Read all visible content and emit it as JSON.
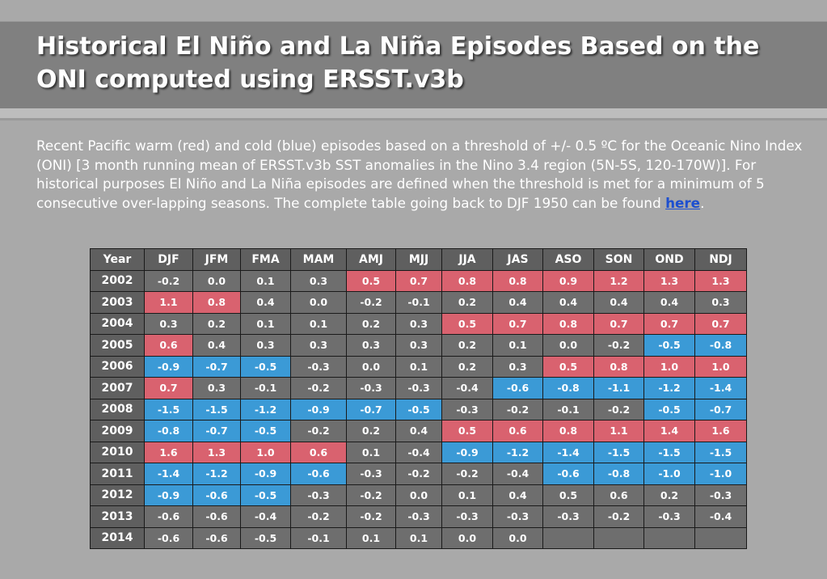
{
  "title_line1": "Historical El Niño and La Niña Episodes Based on the",
  "title_line2": "ONI computed using ERSST.v3b",
  "intro_text": "Recent Pacific warm (red) and cold (blue) episodes based on a threshold of +/- 0.5 ºC for the Oceanic Nino Index (ONI) [3 month running mean of ERSST.v3b SST anomalies in the Nino 3.4 region (5N-5S, 120-170W)]. For historical purposes El Niño and La Niña episodes are defined when the threshold is met for a minimum of 5 consecutive over-lapping seasons. The complete table going back to DJF 1950 can be found ",
  "link_text": "here",
  "intro_end": ".",
  "colors": {
    "warm": "#d9626f",
    "cold": "#3b9ad6",
    "neutral": "#6e6e6e"
  },
  "table": {
    "headers": [
      "Year",
      "DJF",
      "JFM",
      "FMA",
      "MAM",
      "AMJ",
      "MJJ",
      "JJA",
      "JAS",
      "ASO",
      "SON",
      "OND",
      "NDJ"
    ],
    "rows": [
      {
        "year": "2002",
        "values": [
          "-0.2",
          "0.0",
          "0.1",
          "0.3",
          "0.5",
          "0.7",
          "0.8",
          "0.8",
          "0.9",
          "1.2",
          "1.3",
          "1.3"
        ],
        "classes": [
          "n",
          "n",
          "n",
          "n",
          "w",
          "w",
          "w",
          "w",
          "w",
          "w",
          "w",
          "w"
        ]
      },
      {
        "year": "2003",
        "values": [
          "1.1",
          "0.8",
          "0.4",
          "0.0",
          "-0.2",
          "-0.1",
          "0.2",
          "0.4",
          "0.4",
          "0.4",
          "0.4",
          "0.3"
        ],
        "classes": [
          "w",
          "w",
          "n",
          "n",
          "n",
          "n",
          "n",
          "n",
          "n",
          "n",
          "n",
          "n"
        ]
      },
      {
        "year": "2004",
        "values": [
          "0.3",
          "0.2",
          "0.1",
          "0.1",
          "0.2",
          "0.3",
          "0.5",
          "0.7",
          "0.8",
          "0.7",
          "0.7",
          "0.7"
        ],
        "classes": [
          "n",
          "n",
          "n",
          "n",
          "n",
          "n",
          "w",
          "w",
          "w",
          "w",
          "w",
          "w"
        ]
      },
      {
        "year": "2005",
        "values": [
          "0.6",
          "0.4",
          "0.3",
          "0.3",
          "0.3",
          "0.3",
          "0.2",
          "0.1",
          "0.0",
          "-0.2",
          "-0.5",
          "-0.8"
        ],
        "classes": [
          "w",
          "n",
          "n",
          "n",
          "n",
          "n",
          "n",
          "n",
          "n",
          "n",
          "c",
          "c"
        ]
      },
      {
        "year": "2006",
        "values": [
          "-0.9",
          "-0.7",
          "-0.5",
          "-0.3",
          "0.0",
          "0.1",
          "0.2",
          "0.3",
          "0.5",
          "0.8",
          "1.0",
          "1.0"
        ],
        "classes": [
          "c",
          "c",
          "c",
          "n",
          "n",
          "n",
          "n",
          "n",
          "w",
          "w",
          "w",
          "w"
        ]
      },
      {
        "year": "2007",
        "values": [
          "0.7",
          "0.3",
          "-0.1",
          "-0.2",
          "-0.3",
          "-0.3",
          "-0.4",
          "-0.6",
          "-0.8",
          "-1.1",
          "-1.2",
          "-1.4"
        ],
        "classes": [
          "w",
          "n",
          "n",
          "n",
          "n",
          "n",
          "n",
          "c",
          "c",
          "c",
          "c",
          "c"
        ]
      },
      {
        "year": "2008",
        "values": [
          "-1.5",
          "-1.5",
          "-1.2",
          "-0.9",
          "-0.7",
          "-0.5",
          "-0.3",
          "-0.2",
          "-0.1",
          "-0.2",
          "-0.5",
          "-0.7"
        ],
        "classes": [
          "c",
          "c",
          "c",
          "c",
          "c",
          "c",
          "n",
          "n",
          "n",
          "n",
          "c",
          "c"
        ]
      },
      {
        "year": "2009",
        "values": [
          "-0.8",
          "-0.7",
          "-0.5",
          "-0.2",
          "0.2",
          "0.4",
          "0.5",
          "0.6",
          "0.8",
          "1.1",
          "1.4",
          "1.6"
        ],
        "classes": [
          "c",
          "c",
          "c",
          "n",
          "n",
          "n",
          "w",
          "w",
          "w",
          "w",
          "w",
          "w"
        ]
      },
      {
        "year": "2010",
        "values": [
          "1.6",
          "1.3",
          "1.0",
          "0.6",
          "0.1",
          "-0.4",
          "-0.9",
          "-1.2",
          "-1.4",
          "-1.5",
          "-1.5",
          "-1.5"
        ],
        "classes": [
          "w",
          "w",
          "w",
          "w",
          "n",
          "n",
          "c",
          "c",
          "c",
          "c",
          "c",
          "c"
        ]
      },
      {
        "year": "2011",
        "values": [
          "-1.4",
          "-1.2",
          "-0.9",
          "-0.6",
          "-0.3",
          "-0.2",
          "-0.2",
          "-0.4",
          "-0.6",
          "-0.8",
          "-1.0",
          "-1.0"
        ],
        "classes": [
          "c",
          "c",
          "c",
          "c",
          "n",
          "n",
          "n",
          "n",
          "c",
          "c",
          "c",
          "c"
        ]
      },
      {
        "year": "2012",
        "values": [
          "-0.9",
          "-0.6",
          "-0.5",
          "-0.3",
          "-0.2",
          "0.0",
          "0.1",
          "0.4",
          "0.5",
          "0.6",
          "0.2",
          "-0.3"
        ],
        "classes": [
          "c",
          "c",
          "c",
          "n",
          "n",
          "n",
          "n",
          "n",
          "n",
          "n",
          "n",
          "n"
        ]
      },
      {
        "year": "2013",
        "values": [
          "-0.6",
          "-0.6",
          "-0.4",
          "-0.2",
          "-0.2",
          "-0.3",
          "-0.3",
          "-0.3",
          "-0.3",
          "-0.2",
          "-0.3",
          "-0.4"
        ],
        "classes": [
          "n",
          "n",
          "n",
          "n",
          "n",
          "n",
          "n",
          "n",
          "n",
          "n",
          "n",
          "n"
        ]
      },
      {
        "year": "2014",
        "values": [
          "-0.6",
          "-0.6",
          "-0.5",
          "-0.1",
          "0.1",
          "0.1",
          "0.0",
          "0.0",
          "",
          "",
          "",
          ""
        ],
        "classes": [
          "n",
          "n",
          "n",
          "n",
          "n",
          "n",
          "n",
          "n",
          "e",
          "e",
          "e",
          "e"
        ]
      }
    ]
  }
}
